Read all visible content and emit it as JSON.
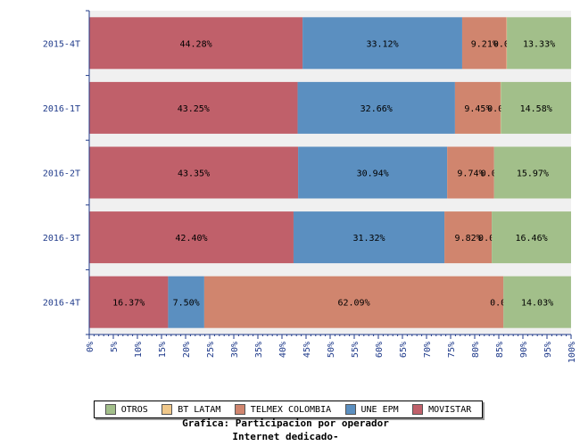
{
  "chart_data": {
    "type": "bar",
    "orientation": "horizontal",
    "stacked": true,
    "categories": [
      "2015-4T",
      "2016-1T",
      "2016-2T",
      "2016-3T",
      "2016-4T"
    ],
    "series": [
      {
        "name": "MOVISTAR",
        "color": "#c0606a",
        "values": [
          44.28,
          43.25,
          43.35,
          42.4,
          16.37
        ],
        "labels": [
          "44.28%",
          "43.25%",
          "43.35%",
          "42.40%",
          "16.37%"
        ]
      },
      {
        "name": "UNE EPM",
        "color": "#5b8fc0",
        "values": [
          33.12,
          32.66,
          30.94,
          31.32,
          7.5
        ],
        "labels": [
          "33.12%",
          "32.66%",
          "30.94%",
          "31.32%",
          "7.50%"
        ]
      },
      {
        "name": "TELMEX COLOMBIA",
        "color": "#d0856e",
        "values": [
          9.21,
          9.45,
          9.74,
          9.82,
          62.09
        ],
        "labels": [
          "9.21%",
          "9.45%",
          "9.74%",
          "9.82%",
          "62.09%"
        ]
      },
      {
        "name": "BT LATAM",
        "color": "#f0c88a",
        "values": [
          0.07,
          0.07,
          0.0,
          0.0,
          0.0
        ],
        "labels": [
          "0.07%",
          "0.07%",
          "0.00%",
          "0.00%",
          "0.00%"
        ]
      },
      {
        "name": "OTROS",
        "color": "#a2bf8a",
        "values": [
          13.33,
          14.58,
          15.97,
          16.46,
          14.03
        ],
        "labels": [
          "13.33%",
          "14.58%",
          "15.97%",
          "16.46%",
          "14.03%"
        ]
      }
    ],
    "xlim": [
      0,
      100
    ],
    "x_ticks": [
      "0%",
      "5%",
      "10%",
      "15%",
      "20%",
      "25%",
      "30%",
      "35%",
      "40%",
      "45%",
      "50%",
      "55%",
      "60%",
      "65%",
      "70%",
      "75%",
      "80%",
      "85%",
      "90%",
      "95%",
      "100%"
    ],
    "legend_order": [
      "OTROS",
      "BT LATAM",
      "TELMEX COLOMBIA",
      "UNE EPM",
      "MOVISTAR"
    ],
    "legend_position": "bottom",
    "background_color": "#f0f0f0"
  },
  "caption": {
    "line1": "Grafica: Participacion por operador",
    "line2": "Internet dedicado-"
  }
}
